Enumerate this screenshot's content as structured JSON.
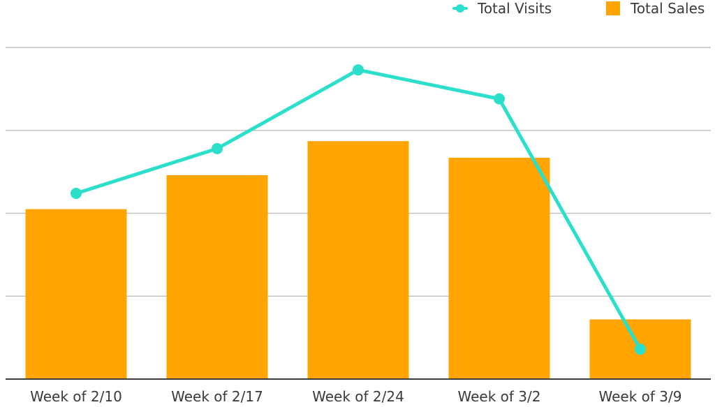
{
  "colors": {
    "sales": "#FFA400",
    "visits": "#2BDFCB",
    "grid": "#c4c4c4",
    "axis": "#3a3a3a"
  },
  "legend": {
    "visits_label": "Total Visits",
    "sales_label": "Total Sales"
  },
  "chart_data": {
    "type": "bar",
    "categories": [
      "Week of 2/10",
      "Week of 2/17",
      "Week of 2/24",
      "Week of 3/2",
      "Week of 3/9"
    ],
    "series": [
      {
        "name": "Total Sales",
        "type": "bar",
        "values": [
          2.05,
          2.46,
          2.87,
          2.67,
          0.72
        ]
      },
      {
        "name": "Total Visits",
        "type": "line",
        "values": [
          2.24,
          2.78,
          3.73,
          3.38,
          0.36
        ]
      }
    ],
    "xlabel": "",
    "ylabel": "",
    "ylim": [
      0,
      4
    ],
    "grid": true,
    "legend_position": "top-right"
  }
}
